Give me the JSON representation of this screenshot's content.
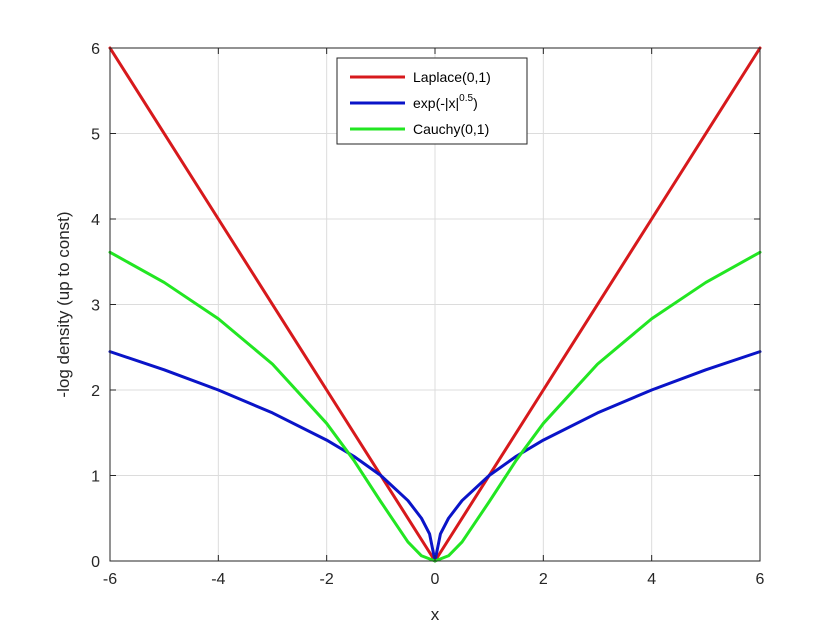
{
  "chart_data": {
    "type": "line",
    "title": "",
    "xlabel": "x",
    "ylabel": "-log density (up to const)",
    "xlim": [
      -6,
      6
    ],
    "ylim": [
      0,
      6
    ],
    "xticks": [
      -6,
      -4,
      -2,
      0,
      2,
      4,
      6
    ],
    "yticks": [
      0,
      1,
      2,
      3,
      4,
      5,
      6
    ],
    "xtick_labels": [
      "-6",
      "-4",
      "-2",
      "0",
      "2",
      "4",
      "6"
    ],
    "ytick_labels": [
      "0",
      "1",
      "2",
      "3",
      "4",
      "5",
      "6"
    ],
    "grid": true,
    "legend_position": "top-center",
    "series": [
      {
        "name": "Laplace(0,1)",
        "color": "#d7191c",
        "x": [
          -6,
          -4,
          -2,
          0,
          2,
          4,
          6
        ],
        "y": [
          6,
          4,
          2,
          0,
          2,
          4,
          6
        ]
      },
      {
        "name": "exp(-|x|^0.5)",
        "name_base": "exp(-|x|",
        "name_sup": "0.5",
        "name_tail": ")",
        "color": "#0a14c8",
        "x": [
          -6,
          -5,
          -4,
          -3,
          -2,
          -1.5,
          -1,
          -0.5,
          -0.25,
          -0.1,
          0,
          0.1,
          0.25,
          0.5,
          1,
          1.5,
          2,
          3,
          4,
          5,
          6
        ],
        "y": [
          2.449,
          2.236,
          2.0,
          1.732,
          1.414,
          1.225,
          1.0,
          0.707,
          0.5,
          0.316,
          0,
          0.316,
          0.5,
          0.707,
          1.0,
          1.225,
          1.414,
          1.732,
          2.0,
          2.236,
          2.449
        ]
      },
      {
        "name": "Cauchy(0,1)",
        "color": "#22e622",
        "x": [
          -6,
          -5,
          -4,
          -3,
          -2,
          -1.5,
          -1,
          -0.5,
          -0.25,
          0,
          0.25,
          0.5,
          1,
          1.5,
          2,
          3,
          4,
          5,
          6
        ],
        "y": [
          3.611,
          3.258,
          2.833,
          2.303,
          1.609,
          1.179,
          0.693,
          0.223,
          0.061,
          0,
          0.061,
          0.223,
          0.693,
          1.179,
          1.609,
          2.303,
          2.833,
          3.258,
          3.611
        ]
      }
    ]
  }
}
